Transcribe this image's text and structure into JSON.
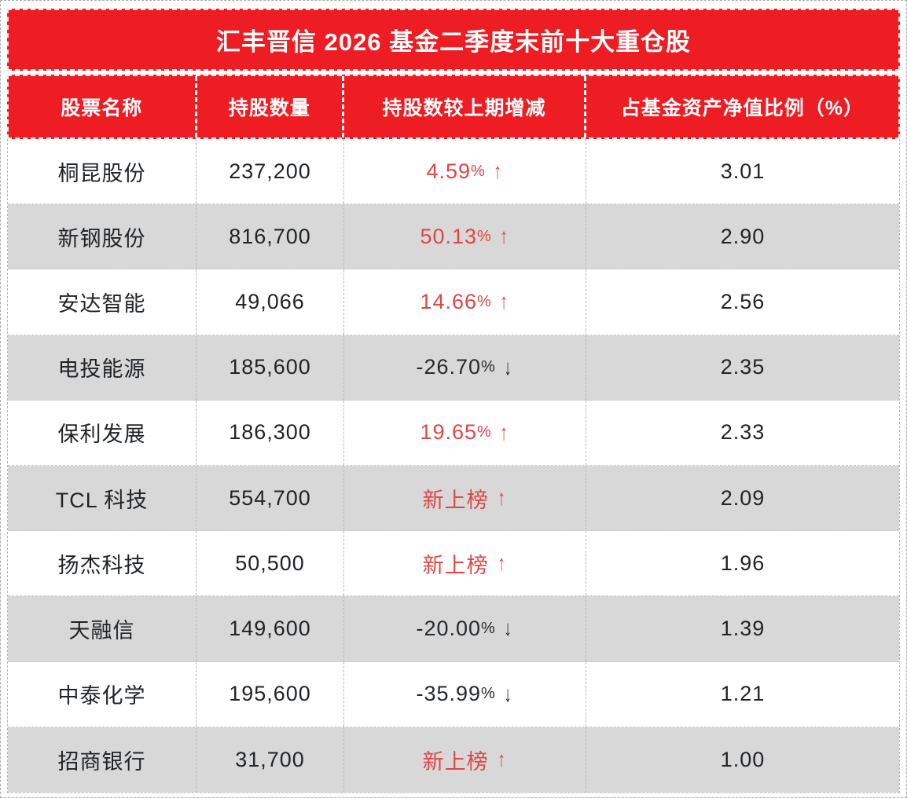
{
  "style": {
    "header_red": "#ee1c23",
    "stripe_gray": "#d8d8d8",
    "up_red": "#e04545"
  },
  "glyphs": {
    "arrow_up": "↑",
    "arrow_down": "↓"
  },
  "chart_data": {
    "type": "table",
    "title": "汇丰晋信 2026 基金二季度末前十大重仓股",
    "columns": [
      "股票名称",
      "持股数量",
      "持股数较上期增减",
      "占基金资产净值比例（%）"
    ],
    "rows": [
      {
        "name": "桐昆股份",
        "shares": "237,200",
        "change": "4.59",
        "change_suffix": "%",
        "direction": "up",
        "ratio": "3.01"
      },
      {
        "name": "新钢股份",
        "shares": "816,700",
        "change": "50.13",
        "change_suffix": "%",
        "direction": "up",
        "ratio": "2.90"
      },
      {
        "name": "安达智能",
        "shares": "49,066",
        "change": "14.66",
        "change_suffix": "%",
        "direction": "up",
        "ratio": "2.56"
      },
      {
        "name": "电投能源",
        "shares": "185,600",
        "change": "-26.70",
        "change_suffix": "%",
        "direction": "down",
        "ratio": "2.35"
      },
      {
        "name": "保利发展",
        "shares": "186,300",
        "change": "19.65",
        "change_suffix": "%",
        "direction": "up",
        "ratio": "2.33"
      },
      {
        "name": "TCL 科技",
        "shares": "554,700",
        "change": "新上榜",
        "change_suffix": "",
        "direction": "up",
        "ratio": "2.09"
      },
      {
        "name": "扬杰科技",
        "shares": "50,500",
        "change": "新上榜",
        "change_suffix": "",
        "direction": "up",
        "ratio": "1.96"
      },
      {
        "name": "天融信",
        "shares": "149,600",
        "change": "-20.00",
        "change_suffix": "%",
        "direction": "down",
        "ratio": "1.39"
      },
      {
        "name": "中泰化学",
        "shares": "195,600",
        "change": "-35.99",
        "change_suffix": "%",
        "direction": "down",
        "ratio": "1.21"
      },
      {
        "name": "招商银行",
        "shares": "31,700",
        "change": "新上榜",
        "change_suffix": "",
        "direction": "up",
        "ratio": "1.00"
      }
    ]
  }
}
